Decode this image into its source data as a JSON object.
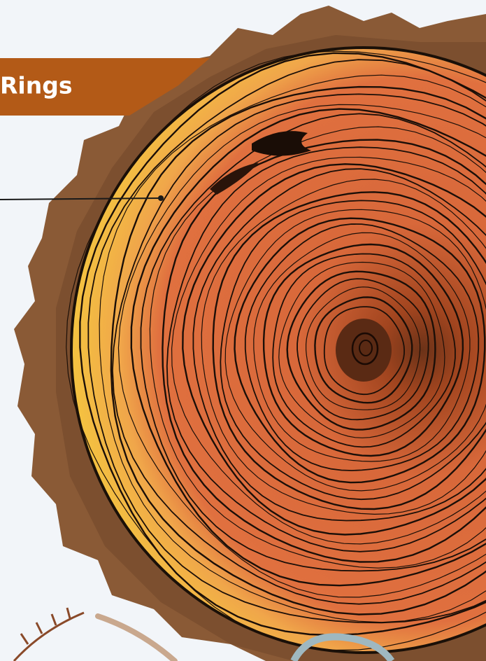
{
  "label": {
    "text": "Rings"
  }
}
